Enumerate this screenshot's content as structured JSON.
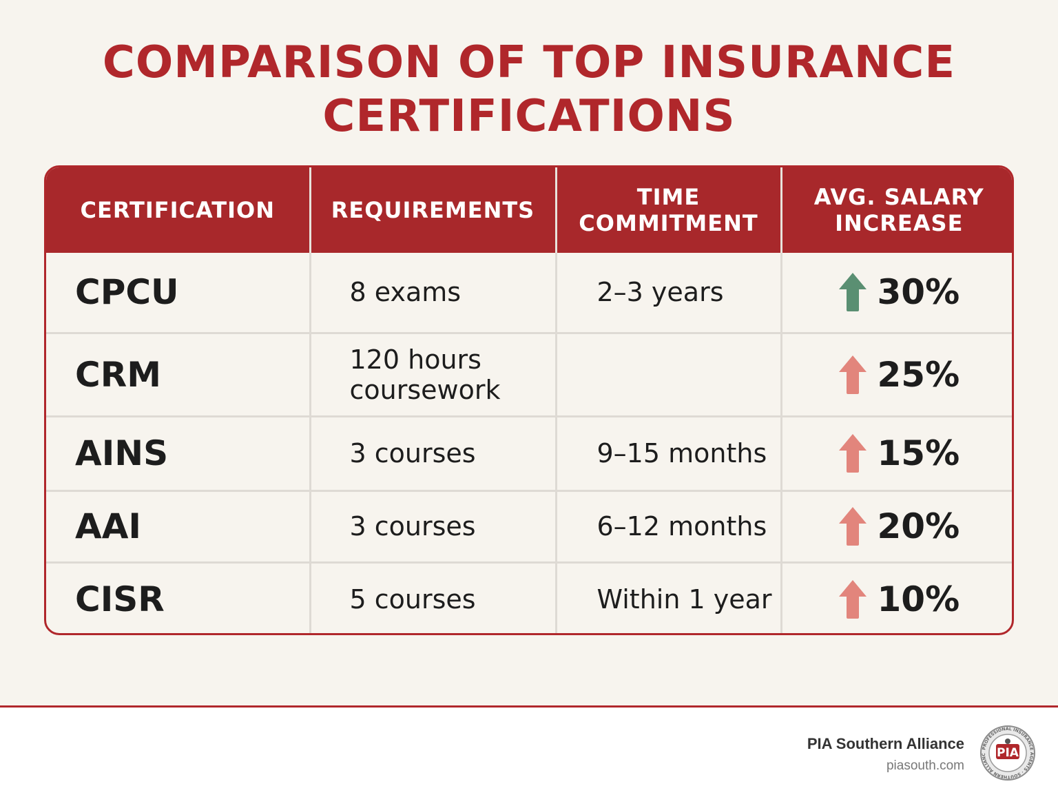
{
  "title": {
    "line1": "COMPARISON OF TOP INSURANCE",
    "line2": "CERTIFICATIONS"
  },
  "table": {
    "headers": [
      {
        "line1": "CERTIFICATION",
        "line2": ""
      },
      {
        "line1": "REQUIREMENTS",
        "line2": ""
      },
      {
        "line1": "TIME",
        "line2": "COMMITMENT"
      },
      {
        "line1": "AVG. SALARY",
        "line2": "INCREASE"
      }
    ],
    "rows": [
      {
        "certification": "CPCU",
        "requirements": "8 exams",
        "time": "2–3 years",
        "salary_increase": "30%",
        "arrow_color": "#5a8f72"
      },
      {
        "certification": "CRM",
        "requirements": "120 hours coursework",
        "time": "",
        "salary_increase": "25%",
        "arrow_color": "#e2857c"
      },
      {
        "certification": "AINS",
        "requirements": "3 courses",
        "time": "9–15 months",
        "salary_increase": "15%",
        "arrow_color": "#e2857c"
      },
      {
        "certification": "AAI",
        "requirements": "3 courses",
        "time": "6–12 months",
        "salary_increase": "20%",
        "arrow_color": "#e2857c"
      },
      {
        "certification": "CISR",
        "requirements": "5 courses",
        "time": "Within 1 year",
        "salary_increase": "10%",
        "arrow_color": "#e2857c"
      }
    ]
  },
  "footer": {
    "brand_name": "PIA Southern Alliance",
    "brand_url": "piasouth.com",
    "logo_text": "PROFESSIONAL INSURANCE AGENTS · SOUTHERN ALLIANCE",
    "logo_icon": "pia-seal-icon"
  },
  "colors": {
    "accent": "#b0272b",
    "header_bg": "#a8282b",
    "arrow_up_green": "#5a8f72",
    "arrow_up_red": "#e2857c",
    "background": "#f7f4ee"
  }
}
